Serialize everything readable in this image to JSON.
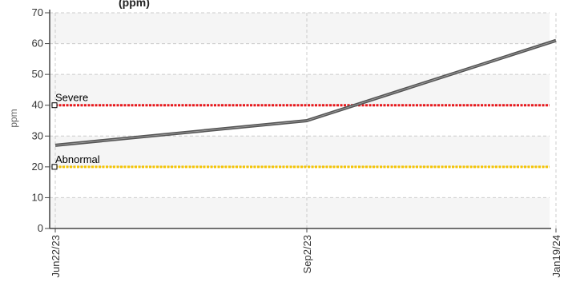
{
  "chart_data": {
    "type": "line",
    "title": "(ppm)",
    "ylabel": "ppm",
    "xlabel": "",
    "ylim": [
      0,
      70
    ],
    "yticks": [
      0,
      10,
      20,
      30,
      40,
      50,
      60,
      70
    ],
    "x": [
      "Jun22/23",
      "Sep2/23",
      "Jan19/24"
    ],
    "series": [
      {
        "values": [
          27,
          35,
          61
        ],
        "color": "#555555"
      }
    ],
    "thresholds": [
      {
        "label": "Severe",
        "value": 40,
        "color": "#e8191d"
      },
      {
        "label": "Abnormal",
        "value": 20,
        "color": "#f5c400"
      }
    ],
    "grid": true,
    "legend": "none"
  }
}
